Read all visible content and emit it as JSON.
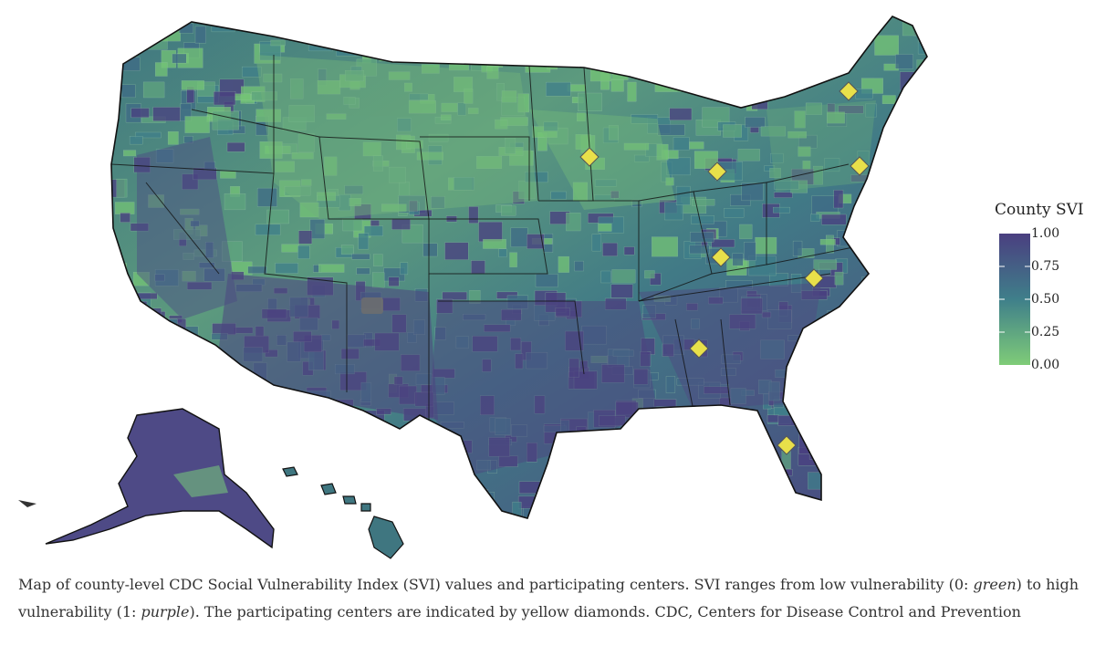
{
  "legend": {
    "title": "County SVI",
    "ticks": [
      "1.00",
      "0.75",
      "0.50",
      "0.25",
      "0.00"
    ],
    "scale_min": 0,
    "scale_max": 1,
    "color_low": "#74c476",
    "color_mid": "#3f7f8a",
    "color_high": "#4a3f80"
  },
  "center_marker": {
    "shape": "yellow-diamond-icon",
    "color": "#e8e04a"
  },
  "caption": {
    "part1": "Map of county-level CDC Social Vulnerability Index (SVI) values and participating centers. SVI ranges from low vulnerability (0: ",
    "green_word": "green",
    "part2": ") to high vulnerability (1: ",
    "purple_word": "purple",
    "part3": "). The participating centers are indicated by yellow diamonds. CDC, Centers for Disease Control and Prevention"
  }
}
